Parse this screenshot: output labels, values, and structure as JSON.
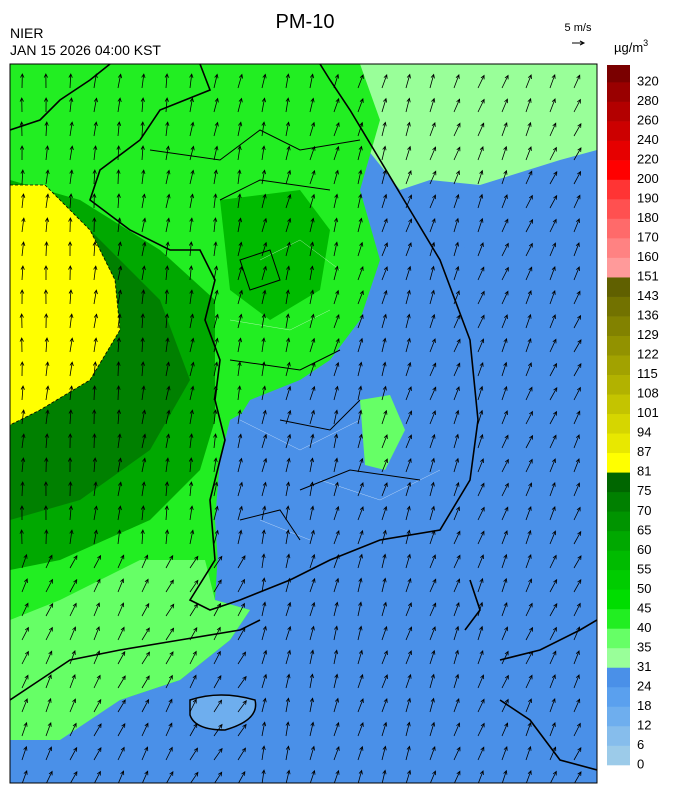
{
  "header": {
    "title": "PM-10",
    "agency": "NIER",
    "datetime": "JAN 15 2026 04:00 KST",
    "wind_scale": "5 m/s"
  },
  "colorbar": {
    "unit": {
      "base": "µg/m",
      "sup": "3"
    },
    "labels": [
      0,
      6,
      12,
      18,
      24,
      31,
      35,
      40,
      45,
      50,
      55,
      60,
      65,
      70,
      75,
      81,
      87,
      94,
      101,
      108,
      115,
      122,
      129,
      136,
      143,
      151,
      160,
      170,
      180,
      190,
      200,
      220,
      240,
      260,
      280,
      320
    ],
    "colors": [
      "#9ccbe9",
      "#86bdec",
      "#6eaeee",
      "#5aa0ee",
      "#4a90e8",
      "#99ff99",
      "#66ff66",
      "#22ee22",
      "#00dd00",
      "#00cc00",
      "#00bb00",
      "#00a800",
      "#009400",
      "#008000",
      "#006600",
      "#ffff00",
      "#e8e800",
      "#d6d600",
      "#c4c400",
      "#b2b200",
      "#a2a200",
      "#929200",
      "#828200",
      "#727200",
      "#606000",
      "#ff9a9a",
      "#ff8282",
      "#ff6a6a",
      "#ff5050",
      "#ff3434",
      "#ff0000",
      "#e60000",
      "#cc0000",
      "#b30000",
      "#990000",
      "#7a0000"
    ]
  }
}
